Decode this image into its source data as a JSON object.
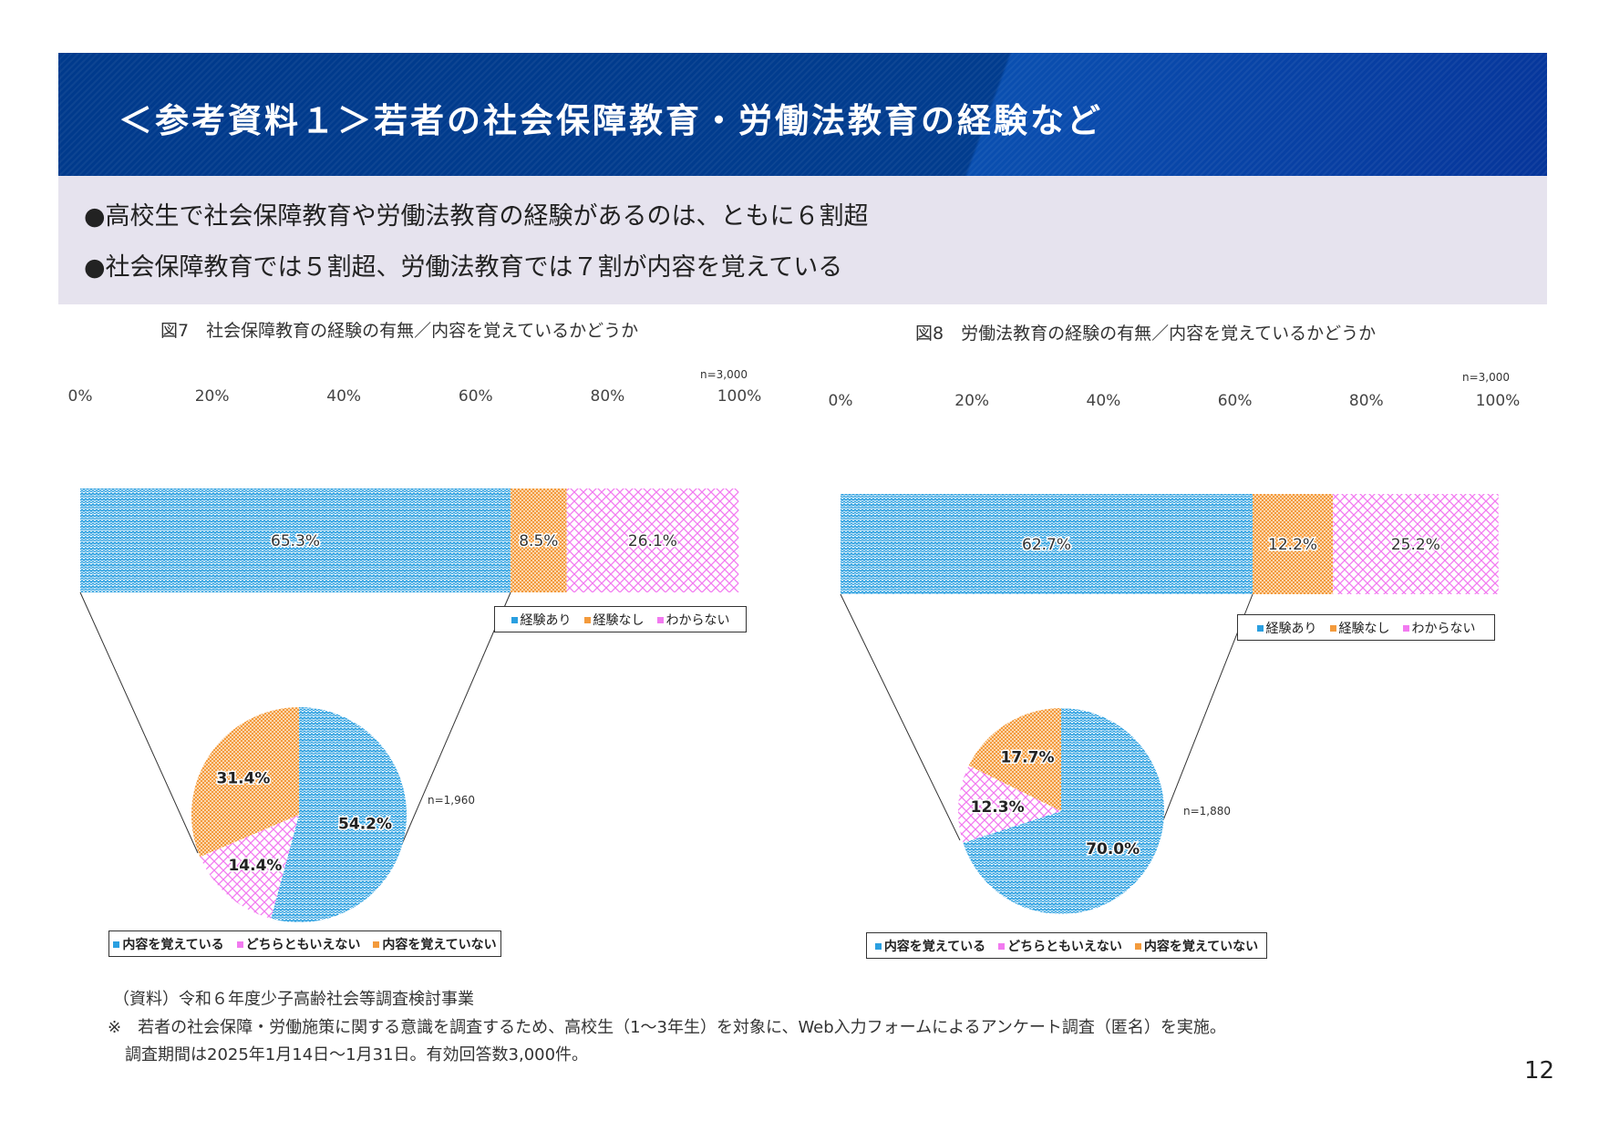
{
  "header": {
    "title": "＜参考資料１＞若者の社会保障教育・労働法教育の経験など"
  },
  "summary": {
    "bullets": [
      "●高校生で社会保障教育や労働法教育の経験があるのは、ともに６割超",
      "●社会保障教育では５割超、労働法教育では７割が内容を覚えている"
    ]
  },
  "colors": {
    "blue": "#2a9fe0",
    "orange": "#f39a3c",
    "pink": "#f27af0",
    "header": "#003a8c",
    "summary_bg": "#e6e3ee"
  },
  "chart_data": [
    {
      "type": "bar",
      "orientation": "stacked-horizontal-100",
      "title": "図7　社会保障教育の経験の有無／内容を覚えているかどうか",
      "ticks": [
        "0%",
        "20%",
        "40%",
        "60%",
        "80%",
        "100%"
      ],
      "xlim": [
        0,
        100
      ],
      "n_label": "n=3,000",
      "series": [
        {
          "name": "経験あり",
          "values": [
            65.3
          ],
          "label": "65.3%"
        },
        {
          "name": "経験なし",
          "values": [
            8.5
          ],
          "label": "8.5%"
        },
        {
          "name": "わからない",
          "values": [
            26.1
          ],
          "label": "26.1%"
        }
      ],
      "legend": [
        "経験あり",
        "経験なし",
        "わからない"
      ],
      "breakdown": {
        "type": "pie",
        "n_label": "n=1,960",
        "slices": [
          {
            "name": "内容を覚えている",
            "value": 54.2,
            "label": "54.2%"
          },
          {
            "name": "どちらともいえない",
            "value": 14.4,
            "label": "14.4%"
          },
          {
            "name": "内容を覚えていない",
            "value": 31.4,
            "label": "31.4%"
          }
        ],
        "legend": [
          "内容を覚えている",
          "どちらともいえない",
          "内容を覚えていない"
        ]
      }
    },
    {
      "type": "bar",
      "orientation": "stacked-horizontal-100",
      "title": "図8　労働法教育の経験の有無／内容を覚えているかどうか",
      "ticks": [
        "0%",
        "20%",
        "40%",
        "60%",
        "80%",
        "100%"
      ],
      "xlim": [
        0,
        100
      ],
      "n_label": "n=3,000",
      "series": [
        {
          "name": "経験あり",
          "values": [
            62.7
          ],
          "label": "62.7%"
        },
        {
          "name": "経験なし",
          "values": [
            12.2
          ],
          "label": "12.2%"
        },
        {
          "name": "わからない",
          "values": [
            25.2
          ],
          "label": "25.2%"
        }
      ],
      "legend": [
        "経験あり",
        "経験なし",
        "わからない"
      ],
      "breakdown": {
        "type": "pie",
        "n_label": "n=1,880",
        "slices": [
          {
            "name": "内容を覚えている",
            "value": 70.0,
            "label": "70.0%"
          },
          {
            "name": "どちらともいえない",
            "value": 12.3,
            "label": "12.3%"
          },
          {
            "name": "内容を覚えていない",
            "value": 17.7,
            "label": "17.7%"
          }
        ],
        "legend": [
          "内容を覚えている",
          "どちらともいえない",
          "内容を覚えていない"
        ]
      }
    }
  ],
  "footer": {
    "source": "（資料）令和６年度少子高齢社会等調査検討事業",
    "note1": "※　若者の社会保障・労働施策に関する意識を調査するため、高校生（1～3年生）を対象に、Web入力フォームによるアンケート調査（匿名）を実施。",
    "note2": "調査期間は2025年1月14日～1月31日。有効回答数3,000件。",
    "page": "12"
  }
}
